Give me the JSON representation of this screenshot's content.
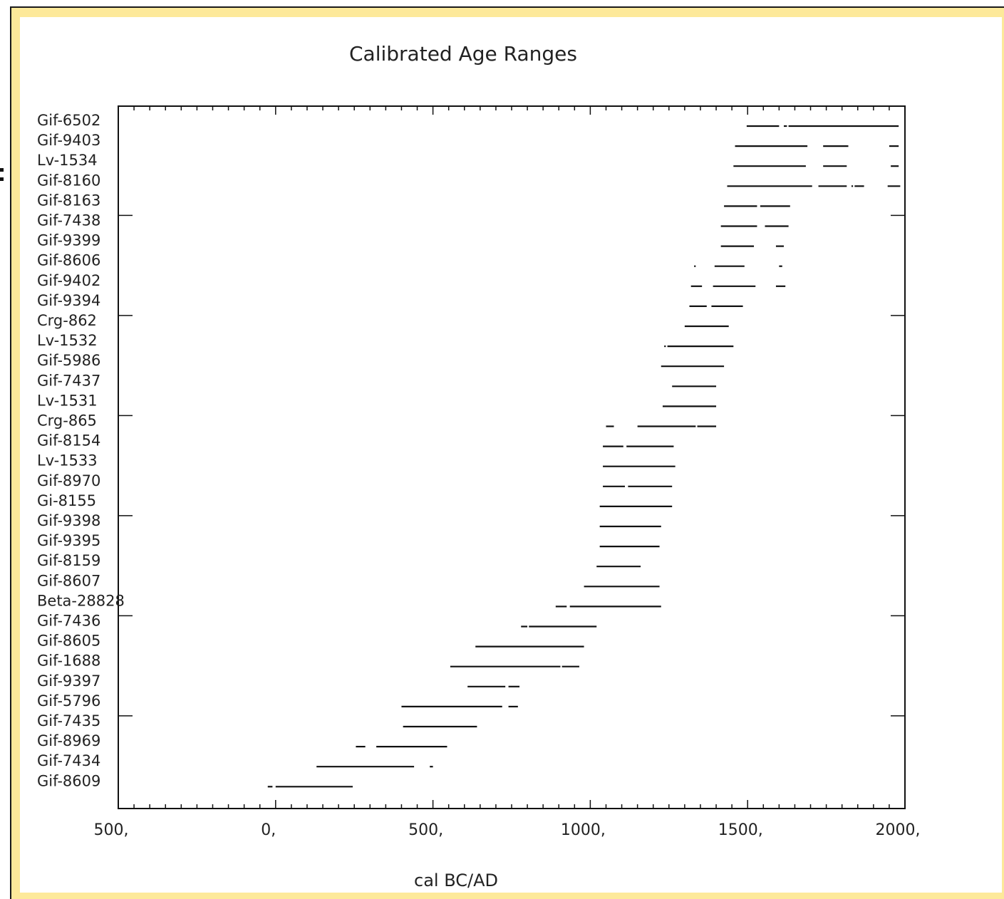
{
  "chart_data": {
    "type": "range",
    "title": "Calibrated Age Ranges",
    "xlabel": "cal BC/AD",
    "xlim": [
      -500,
      2000
    ],
    "xticks": [
      -500,
      0,
      500,
      1000,
      1500,
      2000
    ],
    "xtick_labels": [
      "500,",
      "0,",
      "500,",
      "1000,",
      "1500,",
      "2000,"
    ],
    "grid": false,
    "samples": [
      {
        "name": "Gif-6502",
        "ranges": [
          [
            1497,
            1600
          ],
          [
            1615,
            1625
          ],
          [
            1630,
            1980
          ]
        ]
      },
      {
        "name": "Gif-9403",
        "ranges": [
          [
            1460,
            1690
          ],
          [
            1740,
            1820
          ],
          [
            1950,
            1980
          ]
        ]
      },
      {
        "name": "Lv-1534",
        "ranges": [
          [
            1455,
            1685
          ],
          [
            1740,
            1815
          ],
          [
            1955,
            1980
          ]
        ]
      },
      {
        "name": "Gif-8160",
        "ranges": [
          [
            1435,
            1705
          ],
          [
            1725,
            1815
          ],
          [
            1830,
            1835
          ],
          [
            1840,
            1870
          ],
          [
            1945,
            1985
          ]
        ]
      },
      {
        "name": "Gif-8163",
        "ranges": [
          [
            1425,
            1530
          ],
          [
            1540,
            1635
          ]
        ]
      },
      {
        "name": "Gif-7438",
        "ranges": [
          [
            1415,
            1530
          ],
          [
            1555,
            1630
          ]
        ]
      },
      {
        "name": "Gif-9399",
        "ranges": [
          [
            1415,
            1520
          ],
          [
            1590,
            1615
          ]
        ]
      },
      {
        "name": "Gif-8606",
        "ranges": [
          [
            1330,
            1335
          ],
          [
            1395,
            1490
          ],
          [
            1600,
            1610
          ]
        ]
      },
      {
        "name": "Gif-9402",
        "ranges": [
          [
            1320,
            1355
          ],
          [
            1390,
            1525
          ],
          [
            1590,
            1620
          ]
        ]
      },
      {
        "name": "Gif-9394",
        "ranges": [
          [
            1315,
            1370
          ],
          [
            1385,
            1485
          ]
        ]
      },
      {
        "name": "Crg-862",
        "ranges": [
          [
            1300,
            1440
          ]
        ]
      },
      {
        "name": "Lv-1532",
        "ranges": [
          [
            1235,
            1240
          ],
          [
            1245,
            1455
          ]
        ]
      },
      {
        "name": "Gif-5986",
        "ranges": [
          [
            1225,
            1425
          ]
        ]
      },
      {
        "name": "Gif-7437",
        "ranges": [
          [
            1260,
            1400
          ]
        ]
      },
      {
        "name": "Lv-1531",
        "ranges": [
          [
            1230,
            1400
          ]
        ]
      },
      {
        "name": "Crg-865",
        "ranges": [
          [
            1050,
            1075
          ],
          [
            1150,
            1335
          ],
          [
            1340,
            1400
          ]
        ]
      },
      {
        "name": "Gif-8154",
        "ranges": [
          [
            1040,
            1105
          ],
          [
            1115,
            1265
          ]
        ]
      },
      {
        "name": "Lv-1533",
        "ranges": [
          [
            1040,
            1270
          ]
        ]
      },
      {
        "name": "Gif-8970",
        "ranges": [
          [
            1040,
            1110
          ],
          [
            1120,
            1260
          ]
        ]
      },
      {
        "name": "Gi-8155",
        "ranges": [
          [
            1030,
            1260
          ]
        ]
      },
      {
        "name": "Gif-9398",
        "ranges": [
          [
            1030,
            1225
          ]
        ]
      },
      {
        "name": "Gif-9395",
        "ranges": [
          [
            1030,
            1220
          ]
        ]
      },
      {
        "name": "Gif-8159",
        "ranges": [
          [
            1020,
            1160
          ]
        ]
      },
      {
        "name": "Gif-8607",
        "ranges": [
          [
            980,
            1220
          ]
        ]
      },
      {
        "name": "Beta-28828",
        "ranges": [
          [
            890,
            925
          ],
          [
            935,
            1225
          ]
        ]
      },
      {
        "name": "Gif-7436",
        "ranges": [
          [
            780,
            800
          ],
          [
            805,
            1020
          ]
        ]
      },
      {
        "name": "Gif-8605",
        "ranges": [
          [
            635,
            980
          ]
        ]
      },
      {
        "name": "Gif-1688",
        "ranges": [
          [
            555,
            905
          ],
          [
            910,
            965
          ]
        ]
      },
      {
        "name": "Gif-9397",
        "ranges": [
          [
            610,
            730
          ],
          [
            740,
            775
          ]
        ]
      },
      {
        "name": "Gif-5796",
        "ranges": [
          [
            400,
            720
          ],
          [
            740,
            770
          ]
        ]
      },
      {
        "name": "Gif-7435",
        "ranges": [
          [
            405,
            640
          ]
        ]
      },
      {
        "name": "Gif-8969",
        "ranges": [
          [
            255,
            285
          ],
          [
            320,
            545
          ]
        ]
      },
      {
        "name": "Gif-7434",
        "ranges": [
          [
            130,
            440
          ],
          [
            490,
            500
          ]
        ]
      },
      {
        "name": "Gif-8609",
        "ranges": [
          [
            -25,
            -10
          ],
          [
            0,
            245
          ]
        ]
      }
    ]
  }
}
